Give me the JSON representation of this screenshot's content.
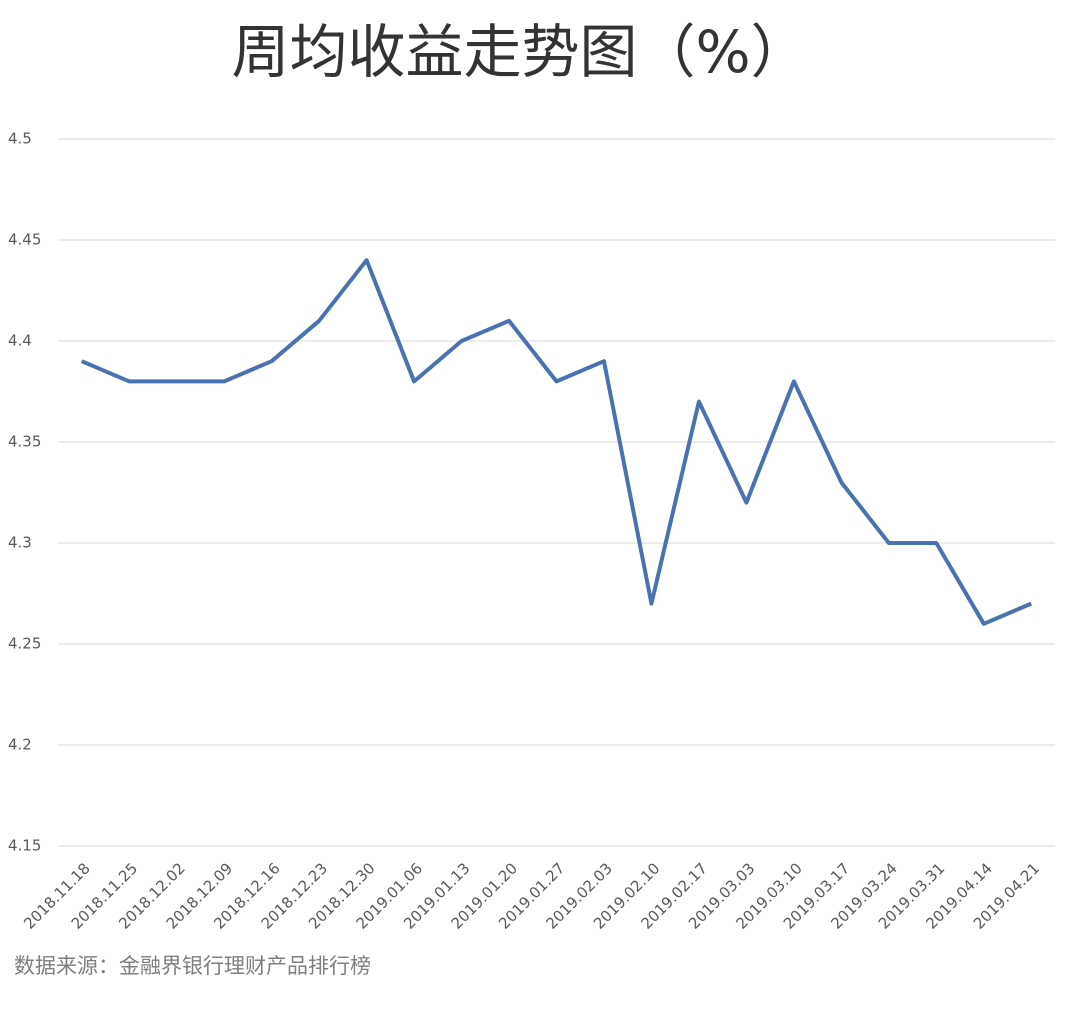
{
  "chart_data": {
    "type": "line",
    "title": "周均收益走势图（%）",
    "source": "数据来源：金融界银行理财产品排行榜",
    "categories": [
      "2018.11.18",
      "2018.11.25",
      "2018.12.02",
      "2018.12.09",
      "2018.12.16",
      "2018.12.23",
      "2018.12.30",
      "2019.01.06",
      "2019.01.13",
      "2019.01.20",
      "2019.01.27",
      "2019.02.03",
      "2019.02.10",
      "2019.02.17",
      "2019.03.03",
      "2019.03.10",
      "2019.03.17",
      "2019.03.24",
      "2019.03.31",
      "2019.04.14",
      "2019.04.21"
    ],
    "values": [
      4.39,
      4.38,
      4.38,
      4.38,
      4.39,
      4.41,
      4.44,
      4.38,
      4.4,
      4.41,
      4.38,
      4.39,
      4.27,
      4.37,
      4.32,
      4.38,
      4.33,
      4.3,
      4.3,
      4.26,
      4.27
    ],
    "color": "#4a72b0",
    "ylim": [
      4.15,
      4.5
    ],
    "yticks": [
      4.15,
      4.2,
      4.25,
      4.3,
      4.35,
      4.4,
      4.45,
      4.5
    ],
    "grid": true
  }
}
